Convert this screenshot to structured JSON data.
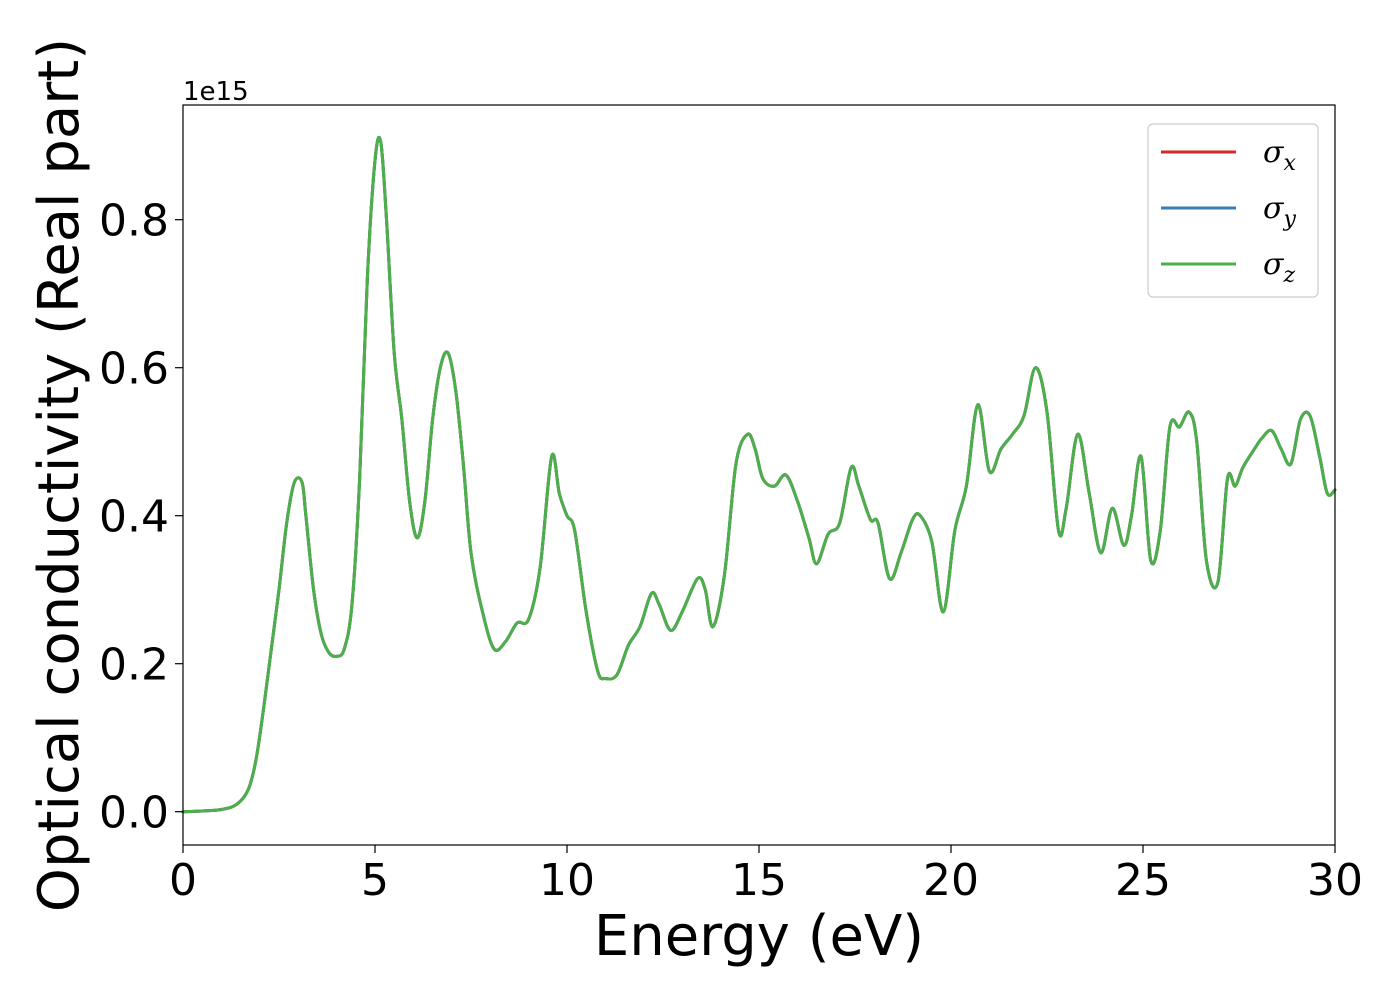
{
  "chart_data": {
    "type": "line",
    "xlabel": "Energy (eV)",
    "ylabel": "Optical conductivity (Real part)",
    "y_offset_label": "1e15",
    "xlim": [
      0,
      30
    ],
    "ylim": [
      -0.045,
      0.955
    ],
    "xticks": [
      0,
      5,
      10,
      15,
      20,
      25,
      30
    ],
    "xtick_labels": [
      "0",
      "5",
      "10",
      "15",
      "20",
      "25",
      "30"
    ],
    "yticks": [
      0.0,
      0.2,
      0.4,
      0.6,
      0.8
    ],
    "ytick_labels": [
      "0.0",
      "0.2",
      "0.4",
      "0.6",
      "0.8"
    ],
    "grid": false,
    "legend_position": "top-right",
    "series": [
      {
        "name_base": "σ",
        "name_sub": "x",
        "color": "#d62728",
        "x": [
          0,
          0.5,
          1.0,
          1.4,
          1.7,
          1.9,
          2.1,
          2.3,
          2.5,
          2.7,
          2.9,
          3.1,
          3.2,
          3.4,
          3.6,
          3.8,
          4.0,
          4.2,
          4.4,
          4.6,
          4.8,
          5.0,
          5.15,
          5.3,
          5.5,
          5.7,
          5.9,
          6.1,
          6.3,
          6.5,
          6.7,
          6.9,
          7.1,
          7.3,
          7.5,
          7.8,
          8.1,
          8.4,
          8.7,
          9.0,
          9.3,
          9.6,
          9.8,
          10.0,
          10.2,
          10.5,
          10.8,
          11.0,
          11.3,
          11.6,
          11.9,
          12.2,
          12.4,
          12.7,
          13.0,
          13.4,
          13.6,
          13.8,
          14.1,
          14.4,
          14.7,
          14.9,
          15.1,
          15.4,
          15.7,
          16.0,
          16.3,
          16.5,
          16.8,
          17.1,
          17.4,
          17.6,
          17.9,
          18.1,
          18.4,
          18.7,
          19.0,
          19.2,
          19.5,
          19.8,
          20.1,
          20.4,
          20.7,
          21.0,
          21.3,
          21.6,
          21.9,
          22.2,
          22.5,
          22.8,
          23.0,
          23.3,
          23.6,
          23.9,
          24.2,
          24.5,
          24.7,
          24.95,
          25.2,
          25.45,
          25.7,
          25.95,
          26.2,
          26.4,
          26.65,
          26.95,
          27.2,
          27.4,
          27.6,
          27.9,
          28.1,
          28.35,
          28.6,
          28.85,
          29.1,
          29.35,
          29.6,
          29.8,
          30.0
        ],
        "y": [
          0.0,
          0.001,
          0.003,
          0.01,
          0.03,
          0.07,
          0.14,
          0.22,
          0.3,
          0.39,
          0.445,
          0.445,
          0.4,
          0.3,
          0.24,
          0.215,
          0.21,
          0.22,
          0.28,
          0.45,
          0.72,
          0.88,
          0.905,
          0.8,
          0.62,
          0.53,
          0.42,
          0.37,
          0.42,
          0.53,
          0.6,
          0.62,
          0.57,
          0.47,
          0.35,
          0.27,
          0.22,
          0.23,
          0.255,
          0.26,
          0.33,
          0.48,
          0.43,
          0.4,
          0.38,
          0.27,
          0.19,
          0.18,
          0.185,
          0.225,
          0.25,
          0.295,
          0.28,
          0.245,
          0.27,
          0.315,
          0.3,
          0.25,
          0.32,
          0.47,
          0.51,
          0.49,
          0.45,
          0.44,
          0.455,
          0.42,
          0.37,
          0.335,
          0.375,
          0.39,
          0.465,
          0.44,
          0.395,
          0.39,
          0.315,
          0.35,
          0.395,
          0.4,
          0.365,
          0.27,
          0.38,
          0.44,
          0.55,
          0.46,
          0.49,
          0.51,
          0.535,
          0.6,
          0.54,
          0.38,
          0.41,
          0.51,
          0.43,
          0.35,
          0.41,
          0.36,
          0.4,
          0.48,
          0.34,
          0.38,
          0.52,
          0.52,
          0.54,
          0.5,
          0.34,
          0.31,
          0.45,
          0.44,
          0.465,
          0.49,
          0.505,
          0.515,
          0.49,
          0.47,
          0.53,
          0.535,
          0.48,
          0.43,
          0.435
        ]
      },
      {
        "name_base": "σ",
        "name_sub": "y",
        "color": "#377eb8",
        "x": [
          0,
          0.5,
          1.0,
          1.4,
          1.7,
          1.9,
          2.1,
          2.3,
          2.5,
          2.7,
          2.9,
          3.1,
          3.2,
          3.4,
          3.6,
          3.8,
          4.0,
          4.2,
          4.4,
          4.6,
          4.8,
          5.0,
          5.15,
          5.3,
          5.5,
          5.7,
          5.9,
          6.1,
          6.3,
          6.5,
          6.7,
          6.9,
          7.1,
          7.3,
          7.5,
          7.8,
          8.1,
          8.4,
          8.7,
          9.0,
          9.3,
          9.6,
          9.8,
          10.0,
          10.2,
          10.5,
          10.8,
          11.0,
          11.3,
          11.6,
          11.9,
          12.2,
          12.4,
          12.7,
          13.0,
          13.4,
          13.6,
          13.8,
          14.1,
          14.4,
          14.7,
          14.9,
          15.1,
          15.4,
          15.7,
          16.0,
          16.3,
          16.5,
          16.8,
          17.1,
          17.4,
          17.6,
          17.9,
          18.1,
          18.4,
          18.7,
          19.0,
          19.2,
          19.5,
          19.8,
          20.1,
          20.4,
          20.7,
          21.0,
          21.3,
          21.6,
          21.9,
          22.2,
          22.5,
          22.8,
          23.0,
          23.3,
          23.6,
          23.9,
          24.2,
          24.5,
          24.7,
          24.95,
          25.2,
          25.45,
          25.7,
          25.95,
          26.2,
          26.4,
          26.65,
          26.95,
          27.2,
          27.4,
          27.6,
          27.9,
          28.1,
          28.35,
          28.6,
          28.85,
          29.1,
          29.35,
          29.6,
          29.8,
          30.0
        ],
        "y": [
          0.0,
          0.001,
          0.003,
          0.01,
          0.03,
          0.07,
          0.14,
          0.22,
          0.3,
          0.39,
          0.445,
          0.445,
          0.4,
          0.3,
          0.24,
          0.215,
          0.21,
          0.22,
          0.28,
          0.45,
          0.72,
          0.88,
          0.905,
          0.8,
          0.62,
          0.53,
          0.42,
          0.37,
          0.42,
          0.53,
          0.6,
          0.62,
          0.57,
          0.47,
          0.35,
          0.27,
          0.22,
          0.23,
          0.255,
          0.26,
          0.33,
          0.48,
          0.43,
          0.4,
          0.38,
          0.27,
          0.19,
          0.18,
          0.185,
          0.225,
          0.25,
          0.295,
          0.28,
          0.245,
          0.27,
          0.315,
          0.3,
          0.25,
          0.32,
          0.47,
          0.51,
          0.49,
          0.45,
          0.44,
          0.455,
          0.42,
          0.37,
          0.335,
          0.375,
          0.39,
          0.465,
          0.44,
          0.395,
          0.39,
          0.315,
          0.35,
          0.395,
          0.4,
          0.365,
          0.27,
          0.38,
          0.44,
          0.55,
          0.46,
          0.49,
          0.51,
          0.535,
          0.6,
          0.54,
          0.38,
          0.41,
          0.51,
          0.43,
          0.35,
          0.41,
          0.36,
          0.4,
          0.48,
          0.34,
          0.38,
          0.52,
          0.52,
          0.54,
          0.5,
          0.34,
          0.31,
          0.45,
          0.44,
          0.465,
          0.49,
          0.505,
          0.515,
          0.49,
          0.47,
          0.53,
          0.535,
          0.48,
          0.43,
          0.435
        ]
      },
      {
        "name_base": "σ",
        "name_sub": "z",
        "color": "#4daf4a",
        "x": [
          0,
          0.5,
          1.0,
          1.4,
          1.7,
          1.9,
          2.1,
          2.3,
          2.5,
          2.7,
          2.9,
          3.1,
          3.2,
          3.4,
          3.6,
          3.8,
          4.0,
          4.2,
          4.4,
          4.6,
          4.8,
          5.0,
          5.15,
          5.3,
          5.5,
          5.7,
          5.9,
          6.1,
          6.3,
          6.5,
          6.7,
          6.9,
          7.1,
          7.3,
          7.5,
          7.8,
          8.1,
          8.4,
          8.7,
          9.0,
          9.3,
          9.6,
          9.8,
          10.0,
          10.2,
          10.5,
          10.8,
          11.0,
          11.3,
          11.6,
          11.9,
          12.2,
          12.4,
          12.7,
          13.0,
          13.4,
          13.6,
          13.8,
          14.1,
          14.4,
          14.7,
          14.9,
          15.1,
          15.4,
          15.7,
          16.0,
          16.3,
          16.5,
          16.8,
          17.1,
          17.4,
          17.6,
          17.9,
          18.1,
          18.4,
          18.7,
          19.0,
          19.2,
          19.5,
          19.8,
          20.1,
          20.4,
          20.7,
          21.0,
          21.3,
          21.6,
          21.9,
          22.2,
          22.5,
          22.8,
          23.0,
          23.3,
          23.6,
          23.9,
          24.2,
          24.5,
          24.7,
          24.95,
          25.2,
          25.45,
          25.7,
          25.95,
          26.2,
          26.4,
          26.65,
          26.95,
          27.2,
          27.4,
          27.6,
          27.9,
          28.1,
          28.35,
          28.6,
          28.85,
          29.1,
          29.35,
          29.6,
          29.8,
          30.0
        ],
        "y": [
          0.0,
          0.001,
          0.003,
          0.01,
          0.03,
          0.07,
          0.14,
          0.22,
          0.3,
          0.39,
          0.445,
          0.445,
          0.4,
          0.3,
          0.24,
          0.215,
          0.21,
          0.22,
          0.28,
          0.45,
          0.72,
          0.88,
          0.905,
          0.8,
          0.62,
          0.53,
          0.42,
          0.37,
          0.42,
          0.53,
          0.6,
          0.62,
          0.57,
          0.47,
          0.35,
          0.27,
          0.22,
          0.23,
          0.255,
          0.26,
          0.33,
          0.48,
          0.43,
          0.4,
          0.38,
          0.27,
          0.19,
          0.18,
          0.185,
          0.225,
          0.25,
          0.295,
          0.28,
          0.245,
          0.27,
          0.315,
          0.3,
          0.25,
          0.32,
          0.47,
          0.51,
          0.49,
          0.45,
          0.44,
          0.455,
          0.42,
          0.37,
          0.335,
          0.375,
          0.39,
          0.465,
          0.44,
          0.395,
          0.39,
          0.315,
          0.35,
          0.395,
          0.4,
          0.365,
          0.27,
          0.38,
          0.44,
          0.55,
          0.46,
          0.49,
          0.51,
          0.535,
          0.6,
          0.54,
          0.38,
          0.41,
          0.51,
          0.43,
          0.35,
          0.41,
          0.36,
          0.4,
          0.48,
          0.34,
          0.38,
          0.52,
          0.52,
          0.54,
          0.5,
          0.34,
          0.31,
          0.45,
          0.44,
          0.465,
          0.49,
          0.505,
          0.515,
          0.49,
          0.47,
          0.53,
          0.535,
          0.48,
          0.43,
          0.435
        ]
      }
    ]
  }
}
